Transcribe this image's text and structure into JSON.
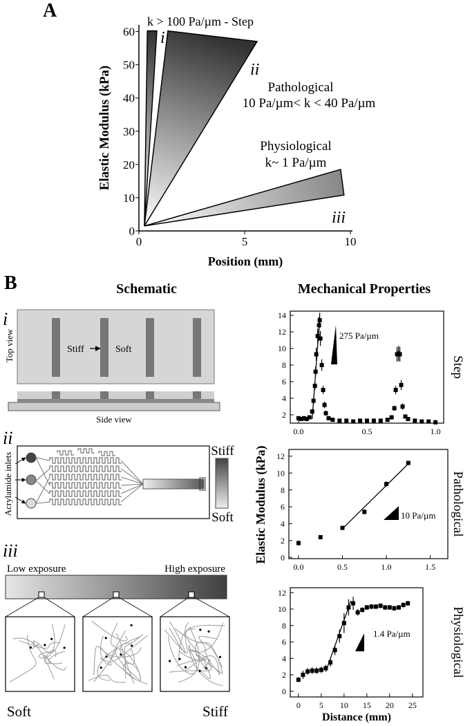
{
  "figure": {
    "panel_a": "A",
    "panel_b": "B",
    "schematic_title": "Schematic",
    "properties_title": "Mechanical Properties",
    "step": {
      "numeral": "i",
      "top_view": "Top view",
      "stiff": "Stiff",
      "soft": "Soft",
      "side_view": "Side view"
    },
    "pathological": {
      "numeral": "ii",
      "inlets": "Acrylamide inlets",
      "stiff": "Stiff",
      "soft": "Soft"
    },
    "physiological": {
      "numeral": "iii",
      "low": "Low exposure",
      "high": "High exposure",
      "soft": "Soft",
      "stiff": "Stiff"
    }
  },
  "chart_data": [
    {
      "type": "area",
      "ylabel": "Elastic Modulus (kPa)",
      "xlabel": "Position (mm)",
      "xlim": [
        0,
        10.1
      ],
      "ylim": [
        0,
        62
      ],
      "xticks": [
        0,
        5,
        10
      ],
      "yticks": [
        0,
        10,
        20,
        30,
        40,
        50,
        60
      ],
      "series": [
        {
          "color": "#333333",
          "x": [
            0.26,
            0.4,
            0.85
          ],
          "values": [
            1.5,
            60.2,
            60.2
          ]
        },
        {
          "color": "#333333",
          "x": [
            0.26,
            1.37,
            5.59
          ],
          "values": [
            1.5,
            60.2,
            57
          ]
        },
        {
          "color": "#888888",
          "x": [
            0.26,
            9.7,
            9.54
          ],
          "values": [
            1.5,
            10.8,
            18.5
          ]
        }
      ],
      "annotations": [
        "k > 100 Pa/µm - Step",
        "i",
        "ii",
        "Pathological",
        "10 Pa/µm< k < 40 Pa/µm",
        "Physiological",
        "k~ 1 Pa/µm",
        "iii"
      ]
    },
    {
      "type": "scatter",
      "side_label": "Step",
      "xlim": [
        -0.06,
        1.06
      ],
      "ylim": [
        1,
        14.5
      ],
      "xticks": [
        {
          "value": 0,
          "label": "0.0"
        },
        0.5,
        {
          "value": 1,
          "label": "1.0"
        }
      ],
      "yticks": [
        2,
        4,
        6,
        8,
        10,
        12,
        14
      ],
      "series": [
        {
          "color": "#000000",
          "x": [
            0,
            0.02,
            0.04,
            0.06,
            0.08,
            0.1,
            0.11,
            0.12,
            0.125,
            0.13,
            0.14,
            0.15,
            0.155,
            0.16,
            0.17,
            0.18,
            0.19,
            0.2,
            0.22,
            0.25,
            0.3,
            0.35,
            0.4,
            0.45,
            0.5,
            0.55,
            0.6,
            0.65,
            0.68,
            0.7,
            0.71,
            0.72,
            0.73,
            0.74,
            0.75,
            0.76,
            0.78,
            0.8,
            0.85,
            0.9,
            0.95,
            1.0
          ],
          "values": [
            1.6,
            1.5,
            1.6,
            1.5,
            1.7,
            2.4,
            3.7,
            5.5,
            7.2,
            9.3,
            11.5,
            12.8,
            13.4,
            11.2,
            8.0,
            5.0,
            3.2,
            2.2,
            1.6,
            1.4,
            1.3,
            1.3,
            1.2,
            1.3,
            1.3,
            1.3,
            1.3,
            1.4,
            1.7,
            2.8,
            5.0,
            9.3,
            9.4,
            9.3,
            5.6,
            3.0,
            1.8,
            1.5,
            1.3,
            1.2,
            1.2,
            1.1
          ],
          "errors": [
            0.2,
            0.2,
            0.2,
            0.2,
            0.2,
            0.3,
            0.4,
            0.5,
            0.6,
            0.8,
            0.9,
            1.0,
            0.9,
            0.9,
            0.7,
            0.5,
            0.4,
            0.3,
            0.2,
            0.2,
            0.2,
            0.2,
            0.2,
            0.2,
            0.2,
            0.2,
            0.2,
            0.2,
            0.2,
            0.3,
            0.5,
            0.9,
            0.9,
            0.9,
            0.6,
            0.4,
            0.2,
            0.2,
            0.2,
            0.2,
            0.2,
            0.2
          ]
        }
      ],
      "fit": {
        "x": [
          0.1,
          0.155
        ],
        "y": [
          1.5,
          13.6
        ]
      },
      "annotations": [
        "275 Pa/µm"
      ]
    },
    {
      "type": "scatter",
      "side_label": "Pathological",
      "ylabel": "Elastic Modulus (kPa)",
      "xlim": [
        -0.11,
        1.7
      ],
      "ylim": [
        -0.15,
        12.8
      ],
      "xticks": [
        {
          "value": 0,
          "label": "0.0"
        },
        0.5,
        {
          "value": 1,
          "label": "1.0"
        },
        1.5
      ],
      "yticks": [
        0,
        2,
        4,
        6,
        8,
        10,
        12
      ],
      "series": [
        {
          "color": "#000000",
          "x": [
            0,
            0.25,
            0.5,
            0.75,
            1.0,
            1.25
          ],
          "values": [
            1.7,
            2.4,
            3.5,
            5.4,
            8.7,
            11.2
          ],
          "errors": [
            0.3,
            0.2,
            0.2,
            0.3,
            0.3,
            0.2
          ]
        }
      ],
      "fit": {
        "x": [
          0.5,
          1.25
        ],
        "y": [
          3.4,
          11.1
        ]
      },
      "annotations": [
        "10 Pa/µm"
      ]
    },
    {
      "type": "scatter",
      "side_label": "Physiological",
      "xlabel": "Distance (mm)",
      "xlim": [
        -1.8,
        27.3
      ],
      "ylim": [
        -0.7,
        12.6
      ],
      "xticks": [
        0,
        5,
        10,
        15,
        20,
        25
      ],
      "yticks": [
        0,
        2,
        4,
        6,
        8,
        10,
        12
      ],
      "series": [
        {
          "color": "#000000",
          "x": [
            0,
            1,
            2,
            3,
            4,
            5,
            6,
            7,
            8,
            9,
            10,
            11,
            12,
            13,
            14,
            15,
            16,
            17,
            18,
            19,
            20,
            21,
            22,
            23,
            24
          ],
          "values": [
            1.4,
            2.0,
            2.4,
            2.5,
            2.5,
            2.6,
            2.8,
            3.5,
            5.0,
            6.7,
            8.3,
            10.2,
            10.7,
            9.6,
            9.9,
            10.2,
            10.3,
            10.3,
            10.4,
            10.2,
            10.2,
            10.1,
            10.2,
            10.5,
            10.7
          ],
          "errors": [
            0.3,
            0.5,
            0.4,
            0.4,
            0.4,
            0.4,
            0.4,
            0.5,
            0.6,
            0.8,
            1.2,
            1.0,
            0.8,
            0.4,
            0.3,
            0.3,
            0.3,
            0.3,
            0.3,
            0.3,
            0.3,
            0.3,
            0.3,
            0.3,
            0.3
          ]
        }
      ],
      "fit": {
        "x": [
          6,
          11.5
        ],
        "y": [
          2.4,
          11.0
        ]
      },
      "annotations": [
        "1.4 Pa/µm"
      ]
    }
  ]
}
